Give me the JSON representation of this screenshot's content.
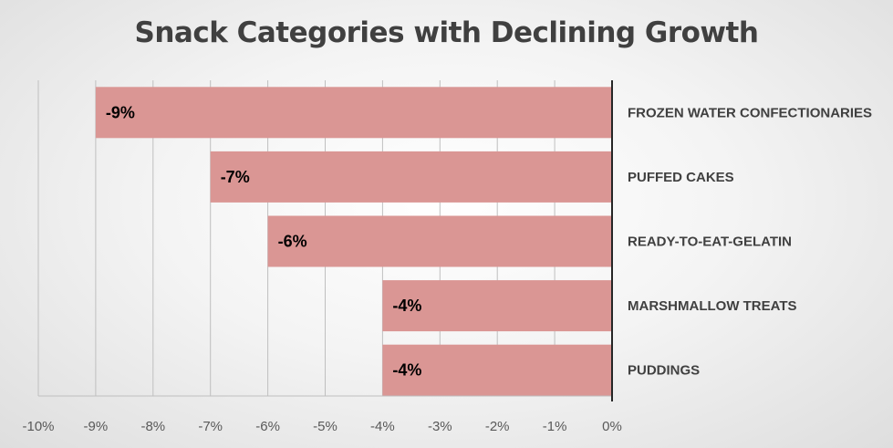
{
  "chart_data": {
    "type": "bar",
    "orientation": "horizontal",
    "title": "Snack Categories with Declining Growth",
    "categories": [
      "FROZEN WATER CONFECTIONARIES",
      "PUFFED CAKES",
      "READY-TO-EAT-GELATIN",
      "MARSHMALLOW TREATS",
      "PUDDINGS"
    ],
    "values": [
      -9,
      -7,
      -6,
      -4,
      -4
    ],
    "data_labels": [
      "-9%",
      "-7%",
      "-6%",
      "-4%",
      "-4%"
    ],
    "xlim": [
      -10,
      0
    ],
    "x_ticks": [
      -10,
      -9,
      -8,
      -7,
      -6,
      -5,
      -4,
      -3,
      -2,
      -1,
      0
    ],
    "x_tick_labels": [
      "-10%",
      "-9%",
      "-8%",
      "-7%",
      "-6%",
      "-5%",
      "-4%",
      "-3%",
      "-2%",
      "-1%",
      "0%"
    ],
    "xlabel": "",
    "ylabel": "",
    "grid": "vertical",
    "category_labels_side": "right",
    "bar_color": "#da9694",
    "gridline_color": "#bfbfbf",
    "axis_color": "#262626"
  }
}
